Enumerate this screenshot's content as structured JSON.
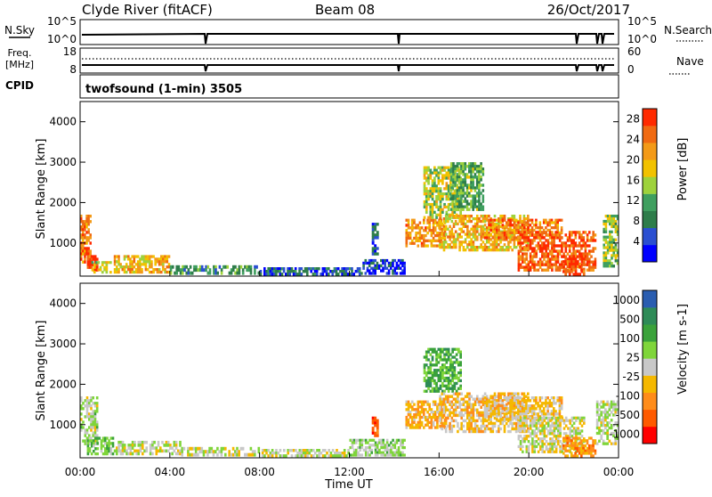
{
  "header": {
    "station": "Clyde River (fitACF)",
    "beam": "Beam 08",
    "date": "26/Oct/2017"
  },
  "nsky": {
    "left_label": "N.Sky",
    "right_label": "N.Search",
    "left_ticks": [
      "10^5",
      "10^0"
    ],
    "right_ticks": [
      "10^5",
      "10^0"
    ]
  },
  "freq": {
    "left_label_top": "Freq.",
    "left_label_unit": "[MHz]",
    "right_label": "Nave",
    "left_ticks": [
      "18",
      "8"
    ],
    "right_ticks": [
      "60",
      "0"
    ]
  },
  "cpid": {
    "label": "CPID",
    "program": "twofsound (1-min) 3505"
  },
  "colors": {
    "power_scale": [
      "#0000ff",
      "#2b4fd1",
      "#2e7d4a",
      "#3f9f5f",
      "#9ed23c",
      "#f2c200",
      "#f39a18",
      "#f06a12",
      "#ff2a00"
    ],
    "velocity_scale": [
      "#ff0000",
      "#ff5a00",
      "#ff8c1a",
      "#f5b800",
      "#c8c8c8",
      "#7fd53a",
      "#3aa23a",
      "#2e8b57",
      "#2a5db0"
    ]
  },
  "chart_data": [
    {
      "type": "heatmap",
      "name": "power",
      "xlabel": "",
      "ylabel": "Slant Range [km]",
      "ylim": [
        180,
        4500
      ],
      "yticks": [
        "1000",
        "2000",
        "3000",
        "4000"
      ],
      "colorbar": {
        "label": "Power [dB]",
        "ticks": [
          "4",
          "8",
          "12",
          "16",
          "20",
          "24",
          "28"
        ],
        "range": [
          0,
          30
        ]
      },
      "regions": [
        {
          "t0": 0.0,
          "t1": 0.5,
          "r0": 500,
          "r1": 1700,
          "level": 24
        },
        {
          "t0": 0.3,
          "t1": 0.8,
          "r0": 300,
          "r1": 700,
          "level": 28
        },
        {
          "t0": 0.5,
          "t1": 1.4,
          "r0": 250,
          "r1": 550,
          "level": 16
        },
        {
          "t0": 1.5,
          "t1": 4.0,
          "r0": 250,
          "r1": 700,
          "level": 20
        },
        {
          "t0": 4.0,
          "t1": 8.0,
          "r0": 220,
          "r1": 450,
          "level": 10
        },
        {
          "t0": 8.0,
          "t1": 12.5,
          "r0": 200,
          "r1": 400,
          "level": 6
        },
        {
          "t0": 12.5,
          "t1": 14.5,
          "r0": 220,
          "r1": 600,
          "level": 4
        },
        {
          "t0": 13.0,
          "t1": 13.3,
          "r0": 700,
          "r1": 1500,
          "level": 6
        },
        {
          "t0": 14.5,
          "t1": 16.3,
          "r0": 900,
          "r1": 1600,
          "level": 22
        },
        {
          "t0": 15.3,
          "t1": 17.0,
          "r0": 1600,
          "r1": 2900,
          "level": 16
        },
        {
          "t0": 16.5,
          "t1": 18.0,
          "r0": 1800,
          "r1": 3000,
          "level": 12
        },
        {
          "t0": 16.0,
          "t1": 20.0,
          "r0": 800,
          "r1": 1700,
          "level": 20
        },
        {
          "t0": 18.0,
          "t1": 21.5,
          "r0": 1100,
          "r1": 1600,
          "level": 24
        },
        {
          "t0": 19.5,
          "t1": 23.0,
          "r0": 300,
          "r1": 1300,
          "level": 26
        },
        {
          "t0": 21.5,
          "t1": 22.5,
          "r0": 200,
          "r1": 700,
          "level": 28
        },
        {
          "t0": 23.3,
          "t1": 24.0,
          "r0": 400,
          "r1": 1700,
          "level": 14
        }
      ]
    },
    {
      "type": "heatmap",
      "name": "velocity",
      "xlabel": "Time UT",
      "ylabel": "Slant Range [km]",
      "ylim": [
        180,
        4500
      ],
      "yticks": [
        "1000",
        "2000",
        "3000",
        "4000"
      ],
      "xticks": [
        "00:00",
        "04:00",
        "08:00",
        "12:00",
        "16:00",
        "20:00",
        "00:00"
      ],
      "colorbar": {
        "label": "Velocity [m s-1]",
        "ticks": [
          "1000",
          "500",
          "100",
          "25",
          "-25",
          "-100",
          "-500",
          "-1000"
        ],
        "range": [
          -1000,
          1000
        ]
      },
      "regions": [
        {
          "t0": 0.0,
          "t1": 0.8,
          "r0": 500,
          "r1": 1700,
          "level": 100
        },
        {
          "t0": 0.3,
          "t1": 1.5,
          "r0": 250,
          "r1": 700,
          "level": 300
        },
        {
          "t0": 1.5,
          "t1": 4.5,
          "r0": 250,
          "r1": 600,
          "level": 60
        },
        {
          "t0": 4.5,
          "t1": 8.0,
          "r0": 220,
          "r1": 450,
          "level": 0
        },
        {
          "t0": 8.0,
          "t1": 12.0,
          "r0": 200,
          "r1": 400,
          "level": 50
        },
        {
          "t0": 12.0,
          "t1": 14.5,
          "r0": 220,
          "r1": 650,
          "level": 150
        },
        {
          "t0": 13.0,
          "t1": 13.3,
          "r0": 700,
          "r1": 1200,
          "level": -700
        },
        {
          "t0": 14.5,
          "t1": 16.3,
          "r0": 900,
          "r1": 1600,
          "level": -300
        },
        {
          "t0": 15.3,
          "t1": 17.0,
          "r0": 1800,
          "r1": 2900,
          "level": 400
        },
        {
          "t0": 16.0,
          "t1": 20.0,
          "r0": 800,
          "r1": 1800,
          "level": -200
        },
        {
          "t0": 18.0,
          "t1": 21.5,
          "r0": 1100,
          "r1": 1700,
          "level": -150
        },
        {
          "t0": 19.5,
          "t1": 22.5,
          "r0": 300,
          "r1": 1200,
          "level": 0
        },
        {
          "t0": 21.5,
          "t1": 23.0,
          "r0": 200,
          "r1": 700,
          "level": -400
        },
        {
          "t0": 23.0,
          "t1": 24.0,
          "r0": 500,
          "r1": 1600,
          "level": 80
        }
      ]
    }
  ]
}
